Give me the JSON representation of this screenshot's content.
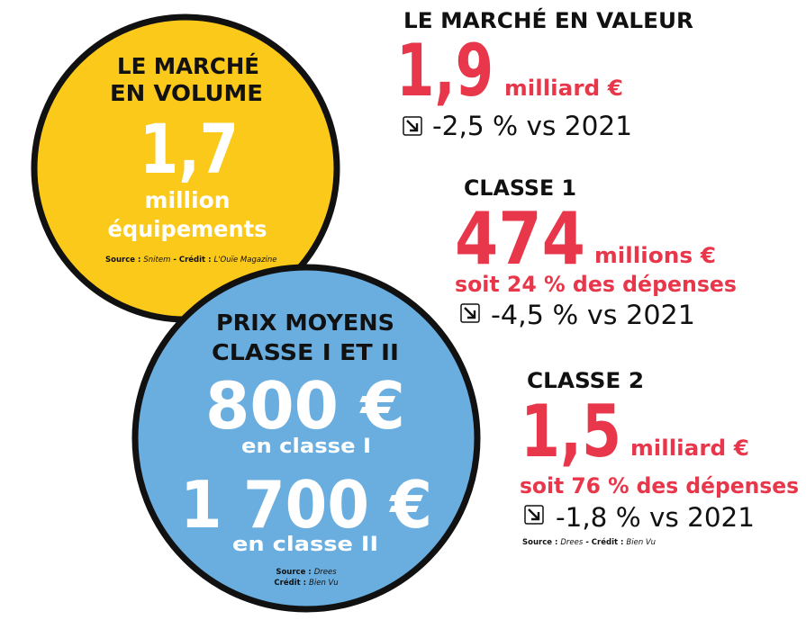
{
  "volume": {
    "title_line1": "LE MARCHÉ",
    "title_line2": "EN VOLUME",
    "value": "1,7",
    "unit_line1": "million",
    "unit_line2": "équipements",
    "source_label": "Source :",
    "source": "Snitem",
    "credit_label": "- Crédit :",
    "credit": "L'Ouïe Magazine"
  },
  "prix": {
    "title_line1": "PRIX MOYENS",
    "title_line2": "CLASSE I ET II",
    "value1": "800 €",
    "label1": "en classe I",
    "value2": "1 700 €",
    "label2": "en classe II",
    "source_label": "Source :",
    "source": "Drees",
    "credit_label": "Crédit :",
    "credit": "Bien Vu"
  },
  "valeur": {
    "title": "LE MARCHÉ EN VALEUR",
    "value": "1,9",
    "unit": "milliard €",
    "change": "-2,5 % vs 2021"
  },
  "classe1": {
    "title": "CLASSE 1",
    "value": "474",
    "unit": "millions €",
    "share": "soit 24 % des dépenses",
    "change": "-4,5 % vs 2021"
  },
  "classe2": {
    "title": "CLASSE 2",
    "value": "1,5",
    "unit": "milliard €",
    "share": "soit 76 % des dépenses",
    "change": "-1,8 % vs 2021",
    "source_label": "Source :",
    "source": "Drees",
    "credit_label": "- Crédit :",
    "credit": "Bien Vu"
  }
}
